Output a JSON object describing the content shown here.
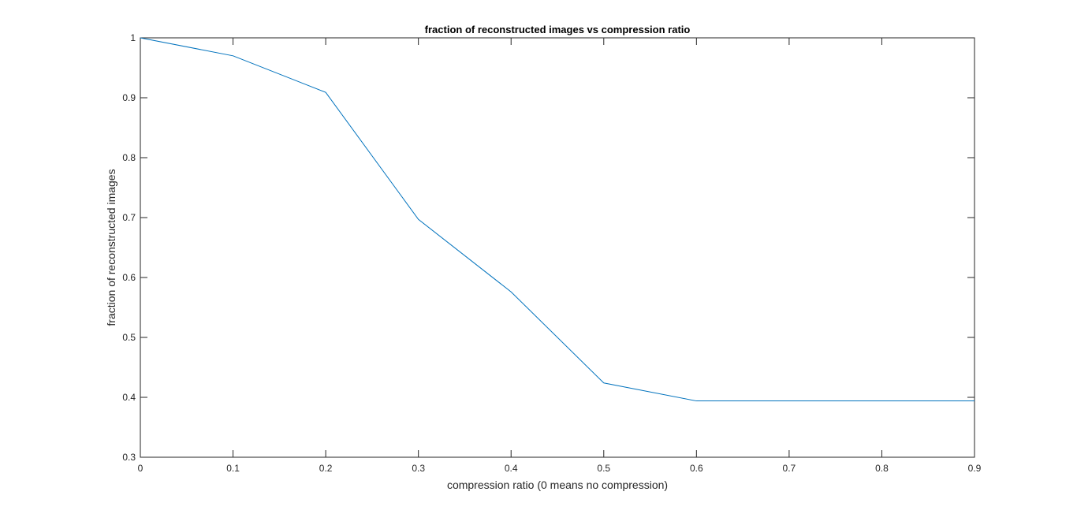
{
  "chart_data": {
    "type": "line",
    "title": "fraction of reconstructed images vs compression ratio",
    "xlabel": "compression ratio (0 means no compression)",
    "ylabel": "fraction of reconstructed images",
    "xlim": [
      0,
      0.9
    ],
    "ylim": [
      0.3,
      1
    ],
    "xticks": [
      "0",
      "0.1",
      "0.2",
      "0.3",
      "0.4",
      "0.5",
      "0.6",
      "0.7",
      "0.8",
      "0.9"
    ],
    "yticks": [
      "0.3",
      "0.4",
      "0.5",
      "0.6",
      "0.7",
      "0.8",
      "0.9",
      "1"
    ],
    "grid": false,
    "legend": "none",
    "series": [
      {
        "color": "#0072BD",
        "x": [
          0,
          0.1,
          0.2,
          0.3,
          0.4,
          0.5,
          0.6,
          0.7,
          0.8,
          0.9
        ],
        "y": [
          1.0,
          0.97,
          0.909,
          0.697,
          0.576,
          0.424,
          0.394,
          0.394,
          0.394,
          0.394
        ]
      }
    ]
  }
}
